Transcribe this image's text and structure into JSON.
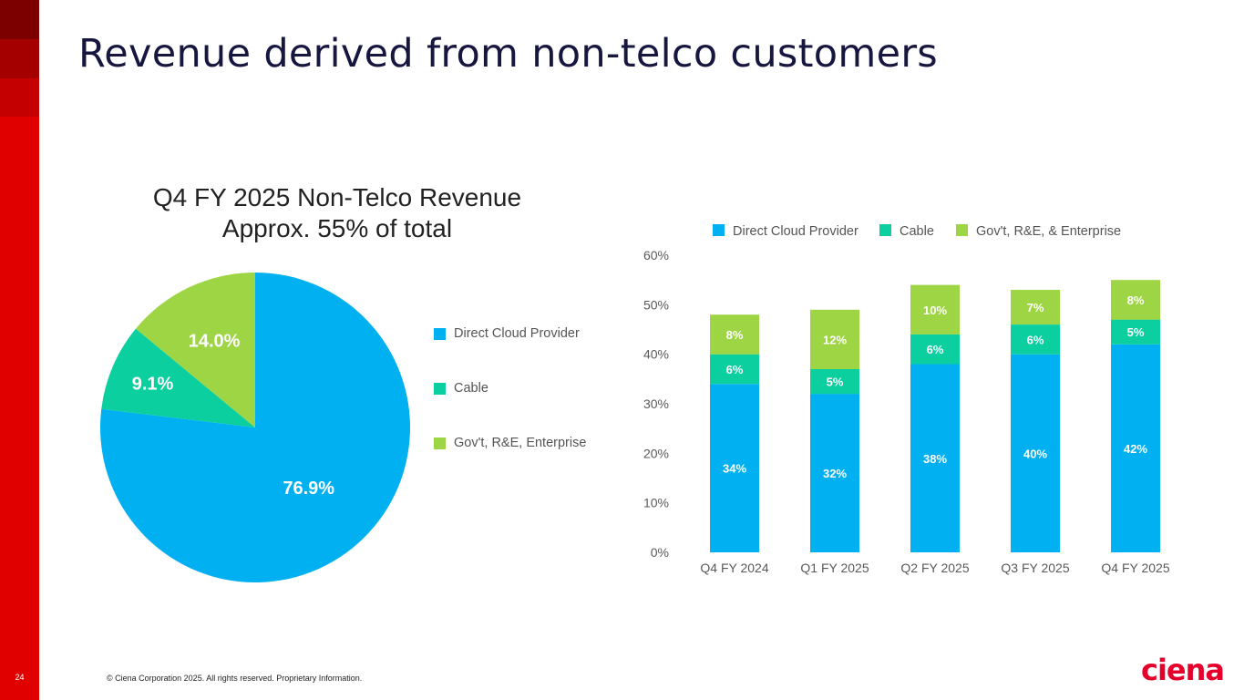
{
  "page": {
    "title": "Revenue derived from non-telco customers",
    "page_number": "24",
    "footer": "© Ciena Corporation 2025. All rights reserved. Proprietary Information.",
    "logo_text": "ciena",
    "accent_red": "#e00000"
  },
  "chart_data": [
    {
      "type": "pie",
      "title": "Q4 FY 2025 Non-Telco Revenue",
      "subtitle": "Approx. 55% of total",
      "legend_position": "right",
      "slices": [
        {
          "name": "Direct Cloud Provider",
          "legend": "Direct Cloud Provider",
          "value": 76.9,
          "label": "76.9%",
          "color": "#00b0f0"
        },
        {
          "name": "Cable",
          "legend": "Cable",
          "value": 9.1,
          "label": "9.1%",
          "color": "#0ccf9f"
        },
        {
          "name": "Gov't, R&E, Enterprise",
          "legend": "Gov't, R&E, Enterprise",
          "value": 14.0,
          "label": "14.0%",
          "color": "#9ed544"
        }
      ]
    },
    {
      "type": "bar",
      "stacked": true,
      "legend_position": "top",
      "categories": [
        "Q4 FY 2024",
        "Q1 FY 2025",
        "Q2 FY 2025",
        "Q3 FY 2025",
        "Q4 FY 2025"
      ],
      "ylim": [
        0,
        60
      ],
      "yticks": [
        0,
        10,
        20,
        30,
        40,
        50,
        60
      ],
      "ytick_labels": [
        "0%",
        "10%",
        "20%",
        "30%",
        "40%",
        "50%",
        "60%"
      ],
      "series": [
        {
          "name": "Direct Cloud Provider",
          "color": "#00b0f0",
          "values": [
            34,
            32,
            38,
            40,
            42
          ],
          "labels": [
            "34%",
            "32%",
            "38%",
            "40%",
            "42%"
          ]
        },
        {
          "name": "Cable",
          "color": "#0ccf9f",
          "values": [
            6,
            5,
            6,
            6,
            5
          ],
          "labels": [
            "6%",
            "5%",
            "6%",
            "6%",
            "5%"
          ]
        },
        {
          "name": "Gov't, R&E, & Enterprise",
          "color": "#9ed544",
          "values": [
            8,
            12,
            10,
            7,
            8
          ],
          "labels": [
            "8%",
            "12%",
            "10%",
            "7%",
            "8%"
          ]
        }
      ]
    }
  ]
}
